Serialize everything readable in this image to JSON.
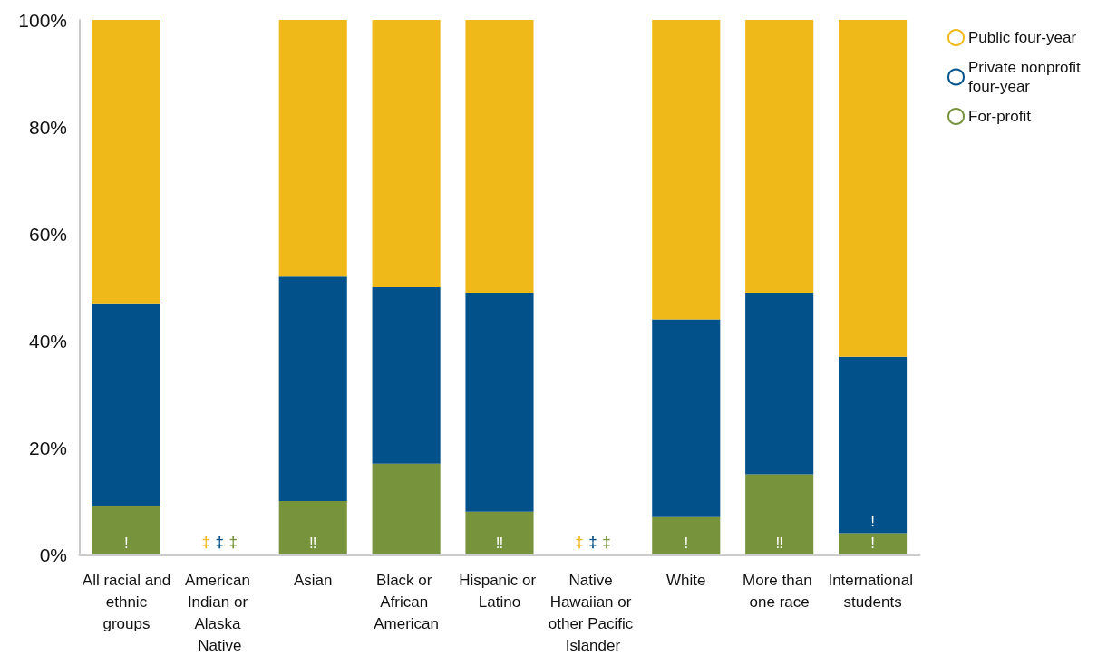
{
  "chart_data": {
    "type": "bar",
    "stacked": true,
    "categories": [
      "All racial and ethnic groups",
      "American Indian or Alaska Native",
      "Asian",
      "Black or African American",
      "Hispanic or Latino",
      "Native Hawaiian or other Pacific Islander",
      "White",
      "More than one race",
      "International students"
    ],
    "series": [
      {
        "name": "For-profit",
        "color": "#77933c",
        "values": [
          9,
          null,
          10,
          17,
          8,
          null,
          7,
          15,
          4
        ],
        "value_labels": [
          "!",
          "‡",
          "‼",
          null,
          "‼",
          "‡",
          "!",
          "‼",
          "!"
        ]
      },
      {
        "name": "Private nonprofit four-year",
        "color": "#02518a",
        "values": [
          38,
          null,
          42,
          33,
          41,
          null,
          37,
          34,
          33
        ],
        "value_labels": [
          null,
          "‡",
          null,
          null,
          null,
          "‡",
          null,
          null,
          "!"
        ]
      },
      {
        "name": "Public four-year",
        "color": "#f0b91a",
        "values": [
          53,
          null,
          48,
          50,
          51,
          null,
          56,
          51,
          63
        ],
        "value_labels": [
          null,
          "‡",
          null,
          null,
          null,
          "‡",
          null,
          null,
          null
        ]
      }
    ],
    "ylim": [
      0,
      100
    ],
    "yticks": [
      {
        "value": 0,
        "label": "0%"
      },
      {
        "value": 20,
        "label": "20%"
      },
      {
        "value": 40,
        "label": "40%"
      },
      {
        "value": 60,
        "label": "60%"
      },
      {
        "value": 80,
        "label": "80%"
      },
      {
        "value": 100,
        "label": "100%"
      }
    ],
    "legend": "top right"
  }
}
